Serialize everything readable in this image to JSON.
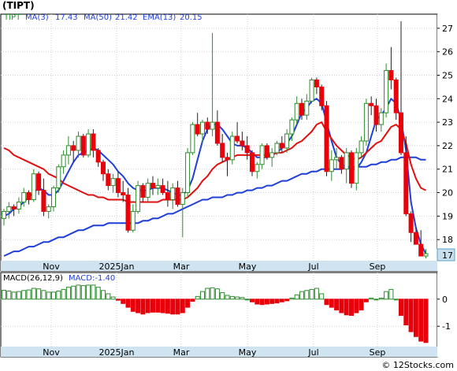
{
  "header": {
    "title": "(TIPT)"
  },
  "legend": {
    "ticker": "TIPT",
    "ma3": {
      "label": "MA(3)",
      "value": "17.43"
    },
    "ma50": {
      "label": "MA(50)",
      "value": "21.42"
    },
    "ema13": {
      "label": "EMA(13)",
      "value": "20.15"
    }
  },
  "macd_legend": {
    "label": "MACD(26,12,9)",
    "value_label": "MACD:-1.40"
  },
  "last_price_label": "17",
  "credit": "© 12Stocks.com",
  "colors": {
    "up": "#2e8b2e",
    "up_fill": "#ffffff",
    "down": "#e8000b",
    "ma3": "#1f3fd9",
    "ma50": "#1f3fd9",
    "ema13": "#e01010",
    "axis_bg": "#cfe3f0",
    "grid": "#d2d2d2",
    "macd_pos": "#2e8b2e",
    "macd_neg": "#e8000b"
  },
  "chart_data": [
    {
      "type": "candlestick",
      "title": "(TIPT)",
      "x_labels": [
        "Nov",
        "2025Jan",
        "Mar",
        "May",
        "Jul",
        "Sep"
      ],
      "y_ticks": [
        18,
        19,
        20,
        21,
        22,
        23,
        24,
        25,
        26,
        27
      ],
      "ylim": [
        17.1,
        27.6
      ],
      "grid": true,
      "candles": [
        [
          18.9,
          19.3,
          18.6,
          19.2
        ],
        [
          19.2,
          19.6,
          18.9,
          19.4
        ],
        [
          19.4,
          19.5,
          19.0,
          19.3
        ],
        [
          19.3,
          19.8,
          19.1,
          19.6
        ],
        [
          19.6,
          20.2,
          19.4,
          20.0
        ],
        [
          20.0,
          20.1,
          19.5,
          19.7
        ],
        [
          19.7,
          21.0,
          19.6,
          20.8
        ],
        [
          20.8,
          20.9,
          19.9,
          20.1
        ],
        [
          20.1,
          20.6,
          19.0,
          19.2
        ],
        [
          19.2,
          19.5,
          18.9,
          19.4
        ],
        [
          19.4,
          20.3,
          19.2,
          20.2
        ],
        [
          20.2,
          21.2,
          20.0,
          21.1
        ],
        [
          21.1,
          21.8,
          20.8,
          21.6
        ],
        [
          21.6,
          22.4,
          21.2,
          22.0
        ],
        [
          22.0,
          22.2,
          21.3,
          21.8
        ],
        [
          21.8,
          22.6,
          21.5,
          22.4
        ],
        [
          22.4,
          22.5,
          21.5,
          21.6
        ],
        [
          21.6,
          22.7,
          21.5,
          22.5
        ],
        [
          22.5,
          22.7,
          21.5,
          21.8
        ],
        [
          21.8,
          21.9,
          21.1,
          21.3
        ],
        [
          21.3,
          21.4,
          20.5,
          20.8
        ],
        [
          20.8,
          21.0,
          20.1,
          20.3
        ],
        [
          20.3,
          20.8,
          20.0,
          20.6
        ],
        [
          20.6,
          20.9,
          19.8,
          20.0
        ],
        [
          20.0,
          20.5,
          19.6,
          19.9
        ],
        [
          19.9,
          20.2,
          18.3,
          18.4
        ],
        [
          18.4,
          19.5,
          18.3,
          19.2
        ],
        [
          19.2,
          20.5,
          19.1,
          20.3
        ],
        [
          20.3,
          20.4,
          19.6,
          19.8
        ],
        [
          19.8,
          20.6,
          19.6,
          20.4
        ],
        [
          20.4,
          20.7,
          19.9,
          20.2
        ],
        [
          20.2,
          20.6,
          19.9,
          20.3
        ],
        [
          20.3,
          20.6,
          19.9,
          20.0
        ],
        [
          20.0,
          20.5,
          19.4,
          19.7
        ],
        [
          19.7,
          20.4,
          19.3,
          20.2
        ],
        [
          20.2,
          20.5,
          19.4,
          19.5
        ],
        [
          19.5,
          20.2,
          18.1,
          20.0
        ],
        [
          20.0,
          21.9,
          19.8,
          21.7
        ],
        [
          21.7,
          23.0,
          21.6,
          22.9
        ],
        [
          22.9,
          23.4,
          22.4,
          22.5
        ],
        [
          22.5,
          23.1,
          22.1,
          23.0
        ],
        [
          23.0,
          23.2,
          22.5,
          22.7
        ],
        [
          22.7,
          26.8,
          22.4,
          23.0
        ],
        [
          23.0,
          23.5,
          22.0,
          22.1
        ],
        [
          22.1,
          22.5,
          21.3,
          21.5
        ],
        [
          21.5,
          21.7,
          20.7,
          21.4
        ],
        [
          21.4,
          22.6,
          21.2,
          22.4
        ],
        [
          22.4,
          23.0,
          22.1,
          22.2
        ],
        [
          22.2,
          22.6,
          21.8,
          22.0
        ],
        [
          22.0,
          22.4,
          21.4,
          21.7
        ],
        [
          21.7,
          21.8,
          20.7,
          20.9
        ],
        [
          20.9,
          21.3,
          20.6,
          21.2
        ],
        [
          21.2,
          22.1,
          21.0,
          22.0
        ],
        [
          22.0,
          22.1,
          21.4,
          21.5
        ],
        [
          21.5,
          21.9,
          21.1,
          21.7
        ],
        [
          21.7,
          22.2,
          21.6,
          22.1
        ],
        [
          22.1,
          22.4,
          21.7,
          21.9
        ],
        [
          21.9,
          22.7,
          21.7,
          22.5
        ],
        [
          22.5,
          23.2,
          22.2,
          23.1
        ],
        [
          23.1,
          24.1,
          22.9,
          23.8
        ],
        [
          23.8,
          24.0,
          23.1,
          23.3
        ],
        [
          23.3,
          24.2,
          23.1,
          23.9
        ],
        [
          23.9,
          24.9,
          23.8,
          24.8
        ],
        [
          24.8,
          24.9,
          24.2,
          24.5
        ],
        [
          24.5,
          24.6,
          23.5,
          23.7
        ],
        [
          23.7,
          23.9,
          20.7,
          20.9
        ],
        [
          20.9,
          21.8,
          20.5,
          21.4
        ],
        [
          21.4,
          21.9,
          21.0,
          21.5
        ],
        [
          21.5,
          21.6,
          20.8,
          21.0
        ],
        [
          21.0,
          21.9,
          20.4,
          21.7
        ],
        [
          21.7,
          21.8,
          20.2,
          20.4
        ],
        [
          20.4,
          21.9,
          20.1,
          21.7
        ],
        [
          21.7,
          22.4,
          21.5,
          22.2
        ],
        [
          22.2,
          24.0,
          22.0,
          23.8
        ],
        [
          23.8,
          24.1,
          23.3,
          23.7
        ],
        [
          23.7,
          24.0,
          22.6,
          22.9
        ],
        [
          22.9,
          23.6,
          22.6,
          23.4
        ],
        [
          23.4,
          25.5,
          23.2,
          25.2
        ],
        [
          25.2,
          26.2,
          24.4,
          24.8
        ],
        [
          24.8,
          24.9,
          23.1,
          23.4
        ],
        [
          23.4,
          27.3,
          21.6,
          21.7
        ],
        [
          21.7,
          22.4,
          19.0,
          19.1
        ],
        [
          19.1,
          19.2,
          17.9,
          18.3
        ],
        [
          18.3,
          18.5,
          17.8,
          17.8
        ],
        [
          17.8,
          18.4,
          17.3,
          17.3
        ],
        [
          17.3,
          17.6,
          17.2,
          17.4
        ]
      ],
      "series": [
        {
          "name": "MA(3)",
          "values": [
            19.0,
            19.1,
            19.3,
            19.4,
            19.6,
            19.8,
            20.0,
            20.2,
            20.1,
            19.9,
            19.9,
            20.1,
            20.5,
            20.9,
            21.3,
            21.6,
            21.7,
            21.8,
            21.9,
            21.8,
            21.6,
            21.4,
            21.2,
            20.9,
            20.7,
            20.4,
            20.2,
            20.1,
            20.1,
            20.1,
            20.2,
            20.2,
            20.2,
            20.1,
            20.0,
            19.9,
            19.9,
            20.1,
            20.6,
            21.4,
            22.2,
            22.7,
            22.9,
            22.9,
            22.7,
            22.4,
            22.1,
            22.0,
            22.0,
            21.9,
            21.7,
            21.5,
            21.5,
            21.5,
            21.6,
            21.7,
            21.9,
            22.1,
            22.4,
            22.9,
            23.4,
            23.6,
            23.9,
            24.0,
            23.8,
            23.0,
            22.2,
            21.5,
            21.2,
            21.1,
            21.0,
            21.0,
            21.3,
            21.7,
            22.4,
            23.1,
            23.3,
            23.6,
            24.0,
            23.8,
            23.1,
            21.8,
            19.6,
            18.5,
            17.8,
            17.4
          ]
        },
        {
          "name": "MA(50)",
          "values": [
            17.3,
            17.4,
            17.5,
            17.5,
            17.6,
            17.7,
            17.7,
            17.8,
            17.9,
            17.9,
            18.0,
            18.1,
            18.1,
            18.2,
            18.3,
            18.4,
            18.4,
            18.5,
            18.6,
            18.6,
            18.6,
            18.7,
            18.7,
            18.7,
            18.7,
            18.7,
            18.7,
            18.7,
            18.8,
            18.8,
            18.9,
            18.9,
            19.0,
            19.1,
            19.1,
            19.2,
            19.3,
            19.4,
            19.5,
            19.6,
            19.7,
            19.7,
            19.8,
            19.8,
            19.8,
            19.9,
            19.9,
            20.0,
            20.0,
            20.1,
            20.1,
            20.2,
            20.2,
            20.3,
            20.3,
            20.4,
            20.5,
            20.5,
            20.6,
            20.7,
            20.8,
            20.8,
            20.9,
            20.9,
            21.0,
            21.0,
            21.0,
            21.0,
            21.0,
            21.1,
            21.1,
            21.1,
            21.1,
            21.1,
            21.2,
            21.2,
            21.3,
            21.3,
            21.4,
            21.4,
            21.5,
            21.5,
            21.5,
            21.5,
            21.4,
            21.4
          ]
        },
        {
          "name": "EMA(13)",
          "values": [
            21.9,
            21.8,
            21.6,
            21.5,
            21.4,
            21.3,
            21.2,
            21.1,
            21.0,
            20.8,
            20.7,
            20.6,
            20.4,
            20.3,
            20.2,
            20.1,
            20.0,
            19.9,
            19.9,
            19.8,
            19.8,
            19.7,
            19.7,
            19.7,
            19.7,
            19.6,
            19.6,
            19.6,
            19.6,
            19.6,
            19.6,
            19.6,
            19.7,
            19.7,
            19.7,
            19.7,
            19.7,
            19.8,
            20.0,
            20.2,
            20.5,
            20.7,
            21.0,
            21.2,
            21.3,
            21.4,
            21.5,
            21.6,
            21.6,
            21.6,
            21.6,
            21.6,
            21.6,
            21.6,
            21.6,
            21.7,
            21.7,
            21.8,
            21.9,
            22.1,
            22.2,
            22.4,
            22.6,
            22.9,
            23.0,
            22.6,
            22.3,
            22.0,
            21.8,
            21.6,
            21.5,
            21.4,
            21.5,
            21.7,
            21.9,
            22.1,
            22.2,
            22.5,
            22.8,
            22.9,
            22.7,
            22.1,
            21.2,
            20.6,
            20.2,
            20.1
          ]
        }
      ]
    },
    {
      "type": "bar",
      "title": "MACD(26,12,9)",
      "y_ticks": [
        -1,
        0
      ],
      "ylim": [
        -1.75,
        0.75
      ],
      "values": [
        0.33,
        0.3,
        0.26,
        0.28,
        0.32,
        0.34,
        0.4,
        0.38,
        0.32,
        0.26,
        0.26,
        0.3,
        0.36,
        0.44,
        0.48,
        0.52,
        0.5,
        0.52,
        0.52,
        0.44,
        0.32,
        0.2,
        0.08,
        -0.04,
        -0.16,
        -0.3,
        -0.45,
        -0.5,
        -0.55,
        -0.5,
        -0.48,
        -0.48,
        -0.5,
        -0.52,
        -0.55,
        -0.55,
        -0.5,
        -0.3,
        -0.08,
        0.1,
        0.28,
        0.4,
        0.42,
        0.38,
        0.24,
        0.14,
        0.1,
        0.08,
        0.06,
        0.0,
        -0.1,
        -0.18,
        -0.2,
        -0.18,
        -0.16,
        -0.14,
        -0.1,
        -0.06,
        0.04,
        0.16,
        0.28,
        0.32,
        0.36,
        0.4,
        0.2,
        -0.2,
        -0.3,
        -0.4,
        -0.5,
        -0.58,
        -0.6,
        -0.5,
        -0.4,
        -0.1,
        0.04,
        0.0,
        0.04,
        0.28,
        0.36,
        0.0,
        -0.6,
        -0.95,
        -1.2,
        -1.38,
        -1.55,
        -1.6
      ]
    }
  ]
}
